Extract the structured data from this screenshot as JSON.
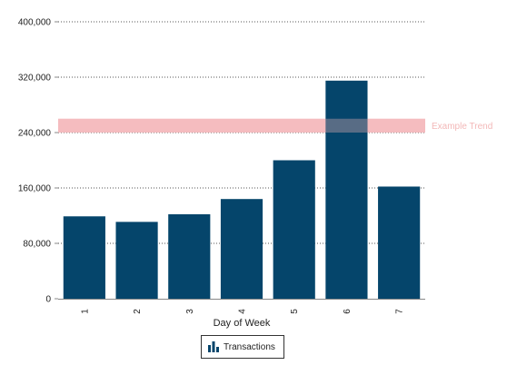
{
  "chart_data": {
    "type": "bar",
    "categories": [
      "1",
      "2",
      "3",
      "4",
      "5",
      "6",
      "7"
    ],
    "series": [
      {
        "name": "Transactions",
        "values": [
          119000,
          111000,
          122000,
          144000,
          200000,
          315000,
          162000
        ]
      }
    ],
    "xlabel": "Day of Week",
    "ylabel": "",
    "ylim": [
      0,
      400000
    ],
    "yticks": [
      0,
      80000,
      160000,
      240000,
      320000,
      400000
    ],
    "ytick_labels": [
      "0",
      "80,000",
      "160,000",
      "240,000",
      "320,000",
      "400,000"
    ],
    "grid": "horizontal-dotted",
    "trend_band": {
      "label": "Example Trend",
      "from": 240000,
      "to": 260000,
      "color": "#f4b5b8"
    },
    "legend_position": "bottom-center",
    "colors": {
      "bar": "#05456b",
      "axis": "#888888",
      "grid": "#555555"
    }
  },
  "legend": {
    "label": "Transactions",
    "icon": "bar-chart-icon"
  }
}
